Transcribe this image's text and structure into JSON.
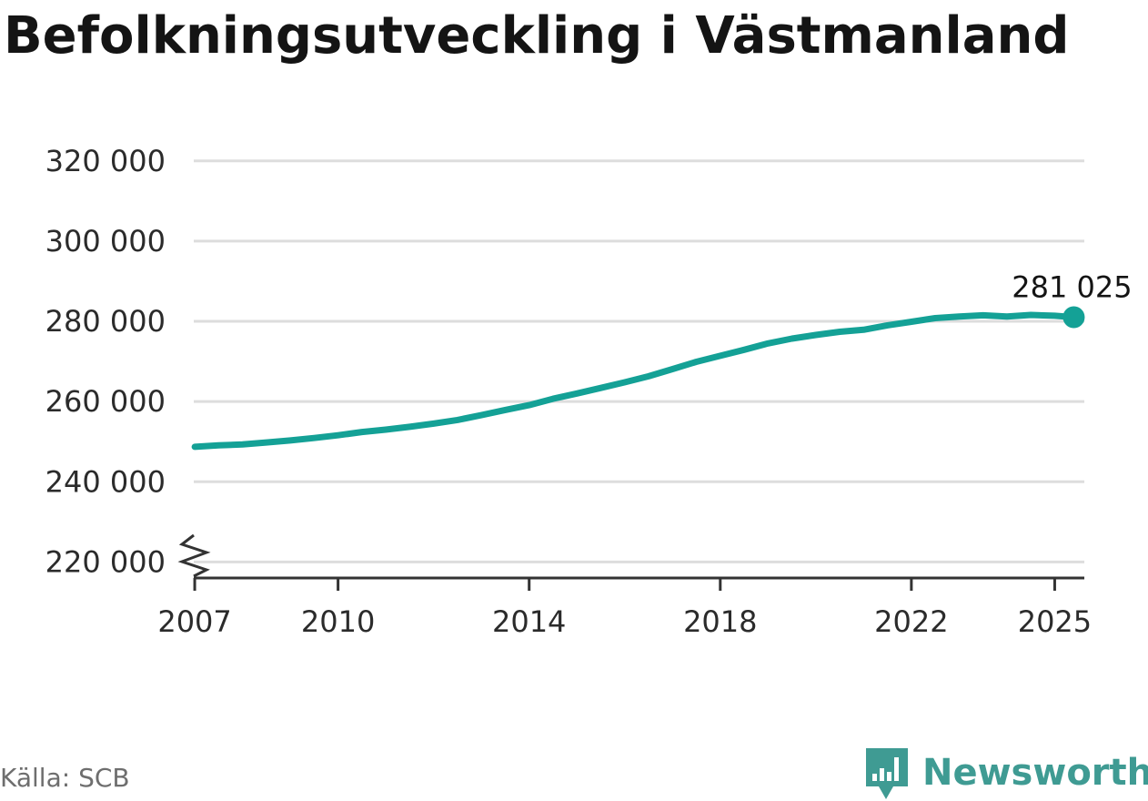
{
  "title": "Befolkningsutveckling i Västmanland",
  "source": "Källa: SCB",
  "brand": {
    "name": "Newsworthy",
    "icon": "newsworthy-logo-icon",
    "color": "#3f9b93"
  },
  "colors": {
    "line": "#14a196",
    "grid": "#dddddd",
    "axis": "#333333"
  },
  "chart_data": {
    "type": "line",
    "title": "Befolkningsutveckling i Västmanland",
    "xlabel": "",
    "ylabel": "",
    "xlim": [
      2006.98,
      2025.62
    ],
    "ylim": [
      216000,
      322000
    ],
    "y_axis_break": true,
    "grid": true,
    "x_ticks": [
      2007,
      2010,
      2014,
      2018,
      2022,
      2025
    ],
    "x_tick_labels": [
      "2007",
      "2010",
      "2014",
      "2018",
      "2022",
      "2025"
    ],
    "y_ticks": [
      220000,
      240000,
      260000,
      280000,
      300000,
      320000
    ],
    "y_tick_labels": [
      "220 000",
      "240 000",
      "260 000",
      "280 000",
      "300 000",
      "320 000"
    ],
    "last_value_label": "281 025",
    "series": [
      {
        "x": [
          2007.0,
          2007.5,
          2008.0,
          2008.5,
          2009.0,
          2009.5,
          2010.0,
          2010.5,
          2011.0,
          2011.5,
          2012.0,
          2012.5,
          2013.0,
          2013.5,
          2014.0,
          2014.5,
          2015.0,
          2015.5,
          2016.0,
          2016.5,
          2017.0,
          2017.5,
          2018.0,
          2018.5,
          2019.0,
          2019.5,
          2020.0,
          2020.5,
          2021.0,
          2021.5,
          2022.0,
          2022.5,
          2023.0,
          2023.5,
          2024.0,
          2024.5,
          2025.0,
          2025.4
        ],
        "values": [
          248700,
          249100,
          249300,
          249800,
          250300,
          250900,
          251600,
          252400,
          253000,
          253700,
          254500,
          255400,
          256600,
          257900,
          259100,
          260700,
          262000,
          263400,
          264800,
          266300,
          268100,
          269900,
          271400,
          272900,
          274500,
          275700,
          276600,
          277400,
          277900,
          279000,
          279900,
          280800,
          281200,
          281500,
          281200,
          281600,
          281400,
          281025
        ]
      }
    ]
  }
}
